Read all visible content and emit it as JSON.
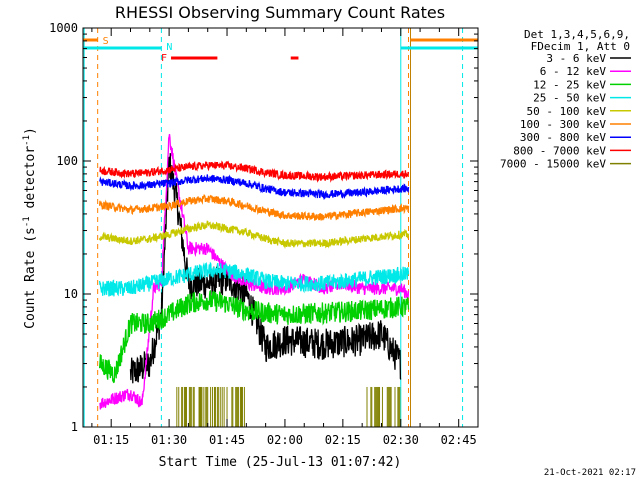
{
  "chart_data": {
    "type": "line",
    "title": "RHESSI Observing Summary Count Rates",
    "xlabel": "Start Time (25-Jul-13 01:07:42)",
    "ylabel_pre": "Count Rate (s",
    "ylabel_exp1": "-1",
    "ylabel_mid": " detector",
    "ylabel_exp2": "-1",
    "ylabel_post": ")",
    "y_scale": "log",
    "ylim": [
      1,
      1000
    ],
    "xlim_minutes": [
      67.7,
      170
    ],
    "y_ticks": [
      {
        "v": 1,
        "label": "1"
      },
      {
        "v": 10,
        "label": "10"
      },
      {
        "v": 100,
        "label": "100"
      },
      {
        "v": 1000,
        "label": "1000"
      }
    ],
    "x_ticks": [
      {
        "t": 75,
        "label": "01:15"
      },
      {
        "t": 90,
        "label": "01:30"
      },
      {
        "t": 105,
        "label": "01:45"
      },
      {
        "t": 120,
        "label": "02:00"
      },
      {
        "t": 135,
        "label": "02:15"
      },
      {
        "t": 150,
        "label": "02:30"
      },
      {
        "t": 165,
        "label": "02:45"
      }
    ],
    "legend_header": [
      "Det 1,3,4,5,6,9,",
      "FDecim 1, Att 0"
    ],
    "legend_placement": "right",
    "series": [
      {
        "name": "3 - 6 keV",
        "color": "#000000",
        "start": 80,
        "end": 150,
        "values_at": [
          [
            80,
            2.5
          ],
          [
            85,
            3.0
          ],
          [
            88,
            7
          ],
          [
            90,
            100
          ],
          [
            92,
            50
          ],
          [
            95,
            12
          ],
          [
            100,
            12
          ],
          [
            105,
            13
          ],
          [
            110,
            10
          ],
          [
            115,
            4
          ],
          [
            120,
            4.5
          ],
          [
            130,
            4.2
          ],
          [
            140,
            4.5
          ],
          [
            145,
            5
          ],
          [
            150,
            3
          ]
        ]
      },
      {
        "name": "6 - 12 keV",
        "color": "#ff00ff",
        "start": 72,
        "end": 152,
        "values_at": [
          [
            72,
            1.5
          ],
          [
            80,
            1.8
          ],
          [
            83,
            1.5
          ],
          [
            86,
            11
          ],
          [
            88,
            12
          ],
          [
            90,
            160
          ],
          [
            92,
            70
          ],
          [
            95,
            22
          ],
          [
            100,
            22
          ],
          [
            105,
            15
          ],
          [
            110,
            12
          ],
          [
            115,
            11
          ],
          [
            120,
            11
          ],
          [
            125,
            13
          ],
          [
            130,
            11
          ],
          [
            135,
            12
          ],
          [
            140,
            11
          ],
          [
            145,
            11
          ],
          [
            150,
            11
          ],
          [
            152,
            10
          ]
        ]
      },
      {
        "name": "12 - 25 keV",
        "color": "#00d000",
        "start": 72,
        "end": 152,
        "values_at": [
          [
            72,
            3
          ],
          [
            76,
            2.5
          ],
          [
            80,
            6
          ],
          [
            85,
            6
          ],
          [
            90,
            7
          ],
          [
            95,
            8.5
          ],
          [
            100,
            9
          ],
          [
            105,
            8.5
          ],
          [
            110,
            7.5
          ],
          [
            120,
            7
          ],
          [
            130,
            7.2
          ],
          [
            140,
            7.5
          ],
          [
            150,
            8
          ]
        ]
      },
      {
        "name": "25 - 50 keV",
        "color": "#00e8e8",
        "start": 72,
        "end": 152,
        "values_at": [
          [
            72,
            11
          ],
          [
            80,
            11
          ],
          [
            85,
            12
          ],
          [
            90,
            13
          ],
          [
            95,
            14
          ],
          [
            100,
            15
          ],
          [
            105,
            15
          ],
          [
            110,
            14
          ],
          [
            115,
            12.5
          ],
          [
            120,
            12
          ],
          [
            130,
            12
          ],
          [
            140,
            13
          ],
          [
            150,
            14
          ]
        ]
      },
      {
        "name": "50 - 100 keV",
        "color": "#c8c800",
        "start": 72,
        "end": 152,
        "values_at": [
          [
            72,
            27
          ],
          [
            80,
            25
          ],
          [
            85,
            26
          ],
          [
            90,
            28
          ],
          [
            95,
            31
          ],
          [
            100,
            33
          ],
          [
            105,
            31
          ],
          [
            110,
            29
          ],
          [
            115,
            26
          ],
          [
            120,
            24
          ],
          [
            130,
            24
          ],
          [
            140,
            26
          ],
          [
            150,
            28
          ]
        ]
      },
      {
        "name": "100 - 300 keV",
        "color": "#ff8000",
        "start": 72,
        "end": 152,
        "values_at": [
          [
            72,
            47
          ],
          [
            80,
            43
          ],
          [
            85,
            44
          ],
          [
            90,
            46
          ],
          [
            95,
            50
          ],
          [
            100,
            52
          ],
          [
            105,
            50
          ],
          [
            110,
            46
          ],
          [
            115,
            42
          ],
          [
            120,
            39
          ],
          [
            130,
            38
          ],
          [
            140,
            41
          ],
          [
            150,
            44
          ]
        ]
      },
      {
        "name": "300 - 800 keV",
        "color": "#0000ff",
        "start": 72,
        "end": 152,
        "values_at": [
          [
            72,
            70
          ],
          [
            80,
            65
          ],
          [
            85,
            66
          ],
          [
            90,
            68
          ],
          [
            95,
            72
          ],
          [
            100,
            74
          ],
          [
            105,
            72
          ],
          [
            110,
            68
          ],
          [
            115,
            62
          ],
          [
            120,
            58
          ],
          [
            130,
            56
          ],
          [
            140,
            58
          ],
          [
            150,
            62
          ]
        ]
      },
      {
        "name": "800 - 7000 keV",
        "color": "#ff0000",
        "start": 72,
        "end": 152,
        "values_at": [
          [
            72,
            85
          ],
          [
            80,
            80
          ],
          [
            85,
            82
          ],
          [
            90,
            86
          ],
          [
            95,
            90
          ],
          [
            100,
            93
          ],
          [
            105,
            92
          ],
          [
            110,
            88
          ],
          [
            115,
            82
          ],
          [
            120,
            78
          ],
          [
            130,
            76
          ],
          [
            140,
            78
          ],
          [
            150,
            80
          ]
        ]
      },
      {
        "name": "7000 - 15000 keV",
        "color": "#808000",
        "start": 92,
        "end": 150,
        "values_at": [
          [
            92,
            1.5
          ],
          [
            150,
            1.5
          ]
        ]
      }
    ],
    "annotations": {
      "saa_label": "S",
      "night_label": "N",
      "flare_label": "F",
      "saa_color": "#ff8000",
      "night_color": "#00e8e8",
      "flare_color": "#ff0000",
      "saa_left": [
        68,
        71.5
      ],
      "saa_right": [
        152,
        170
      ],
      "night_left": [
        68,
        88
      ],
      "night_right": [
        150,
        166
      ],
      "flare_bars": [
        [
          90.5,
          102.5
        ],
        [
          121.5,
          123.5
        ]
      ]
    }
  },
  "timestamp": "21-Oct-2021 02:17"
}
